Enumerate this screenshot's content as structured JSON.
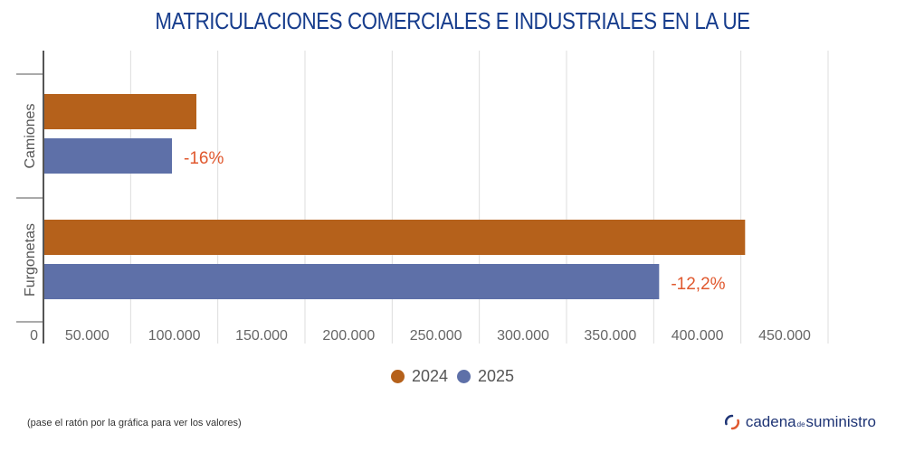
{
  "title": "MATRICULACIONES COMERCIALES E INDUSTRIALES EN LA UE",
  "colors": {
    "title": "#163c8c",
    "series_2024": "#b5611b",
    "series_2025": "#5e70a8",
    "pct": "#e0582e",
    "grid": "#dddddd",
    "axis": "#555555"
  },
  "chart_data": {
    "type": "bar",
    "orientation": "horizontal",
    "title": "MATRICULACIONES COMERCIALES E INDUSTRIALES EN LA UE",
    "categories": [
      "Camiones",
      "Furgonetas"
    ],
    "series": [
      {
        "name": "2024",
        "values": [
          87200,
          401900
        ]
      },
      {
        "name": "2025",
        "values": [
          73200,
          352600
        ]
      }
    ],
    "annotations": [
      "-16%",
      "-12,2%"
    ],
    "xlim": [
      0,
      450000
    ],
    "x_ticks": [
      0,
      50000,
      100000,
      150000,
      200000,
      250000,
      300000,
      350000,
      400000,
      450000
    ],
    "x_tick_labels": [
      "0",
      "50.000",
      "100.000",
      "150.000",
      "200.000",
      "250.000",
      "300.000",
      "350.000",
      "400.000",
      "450.000"
    ],
    "grid": true,
    "legend_position": "bottom-center"
  },
  "legend": [
    {
      "label": "2024",
      "color": "#b5611b"
    },
    {
      "label": "2025",
      "color": "#5e70a8"
    }
  ],
  "footer": {
    "note": "(pase el ratón por la gráfica para ver los valores)",
    "brand_main": "cadena",
    "brand_small": "de",
    "brand_end": "suministro"
  }
}
